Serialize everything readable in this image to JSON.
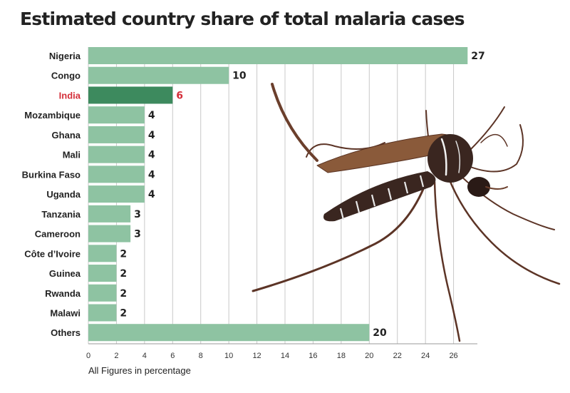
{
  "chart_data": {
    "type": "bar",
    "orientation": "horizontal",
    "title": "Estimated country share of total malaria cases",
    "categories": [
      "Nigeria",
      "Congo",
      "India",
      "Mozambique",
      "Ghana",
      "Mali",
      "Burkina Faso",
      "Uganda",
      "Tanzania",
      "Cameroon",
      "Côte d’Ivoire",
      "Guinea",
      "Rwanda",
      "Malawi",
      "Others"
    ],
    "values": [
      27,
      10,
      6,
      4,
      4,
      4,
      4,
      4,
      3,
      3,
      2,
      2,
      2,
      2,
      20
    ],
    "highlight": "India",
    "xlim": [
      0,
      28
    ],
    "xticks": [
      0,
      2,
      4,
      6,
      8,
      10,
      12,
      14,
      16,
      18,
      20,
      22,
      24,
      26
    ],
    "grid": true,
    "footnote": "All Figures in percentage",
    "colors": {
      "bar": "#8ec3a2",
      "bar_highlight": "#3d8a5e",
      "highlight_label": "#d42f3a",
      "grid": "#c8c8c8",
      "text": "#222222"
    },
    "background_image": "mosquito"
  }
}
